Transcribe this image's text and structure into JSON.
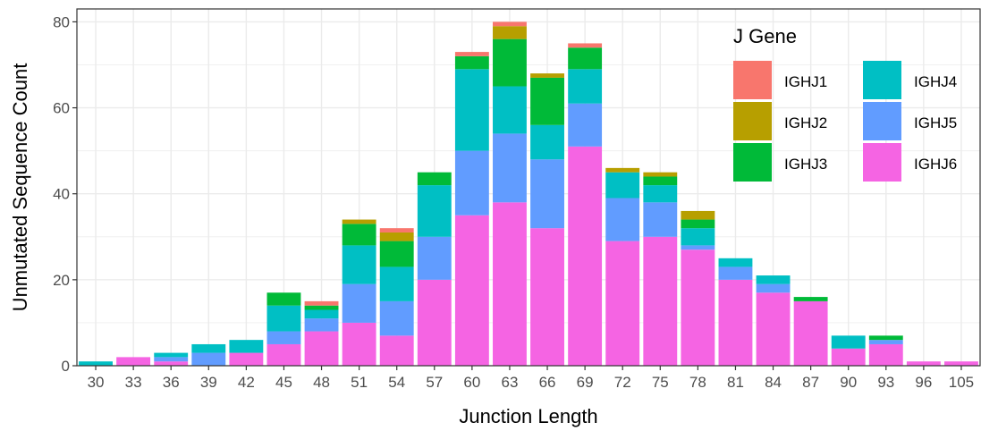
{
  "chart_data": {
    "type": "bar",
    "stacked": true,
    "xlabel": "Junction Length",
    "ylabel": "Unmutated Sequence Count",
    "ylim": [
      0,
      83
    ],
    "yticks": [
      0,
      20,
      40,
      60,
      80
    ],
    "grid": true,
    "legend": {
      "title": "J Gene",
      "placement": "top-right"
    },
    "categories": [
      "30",
      "33",
      "36",
      "39",
      "42",
      "45",
      "48",
      "51",
      "54",
      "57",
      "60",
      "63",
      "66",
      "69",
      "72",
      "75",
      "78",
      "81",
      "84",
      "87",
      "90",
      "93",
      "96",
      "105"
    ],
    "series": [
      {
        "name": "IGHJ6",
        "color": "#F564E3",
        "values": [
          0,
          2,
          1,
          0,
          3,
          5,
          8,
          10,
          7,
          20,
          35,
          38,
          32,
          51,
          29,
          30,
          27,
          20,
          17,
          15,
          4,
          5,
          1,
          1
        ]
      },
      {
        "name": "IGHJ5",
        "color": "#619CFF",
        "values": [
          0,
          0,
          1,
          3,
          0,
          3,
          3,
          9,
          8,
          10,
          15,
          16,
          16,
          10,
          10,
          8,
          1,
          3,
          2,
          0,
          0,
          1,
          0,
          0
        ]
      },
      {
        "name": "IGHJ4",
        "color": "#00BFC4",
        "values": [
          1,
          0,
          1,
          2,
          3,
          6,
          2,
          9,
          8,
          12,
          19,
          11,
          8,
          8,
          6,
          4,
          4,
          2,
          2,
          0,
          3,
          0,
          0,
          0
        ]
      },
      {
        "name": "IGHJ3",
        "color": "#00BA38",
        "values": [
          0,
          0,
          0,
          0,
          0,
          3,
          1,
          5,
          6,
          3,
          3,
          11,
          11,
          5,
          0,
          2,
          2,
          0,
          0,
          1,
          0,
          1,
          0,
          0
        ]
      },
      {
        "name": "IGHJ2",
        "color": "#B79F00",
        "values": [
          0,
          0,
          0,
          0,
          0,
          0,
          0,
          1,
          2,
          0,
          0,
          3,
          1,
          0,
          1,
          1,
          2,
          0,
          0,
          0,
          0,
          0,
          0,
          0
        ]
      },
      {
        "name": "IGHJ1",
        "color": "#F8766D",
        "values": [
          0,
          0,
          0,
          0,
          0,
          0,
          1,
          0,
          1,
          0,
          1,
          1,
          0,
          1,
          0,
          0,
          0,
          0,
          0,
          0,
          0,
          0,
          0,
          0
        ]
      }
    ],
    "legend_order": [
      "IGHJ1",
      "IGHJ2",
      "IGHJ3",
      "IGHJ4",
      "IGHJ5",
      "IGHJ6"
    ]
  }
}
